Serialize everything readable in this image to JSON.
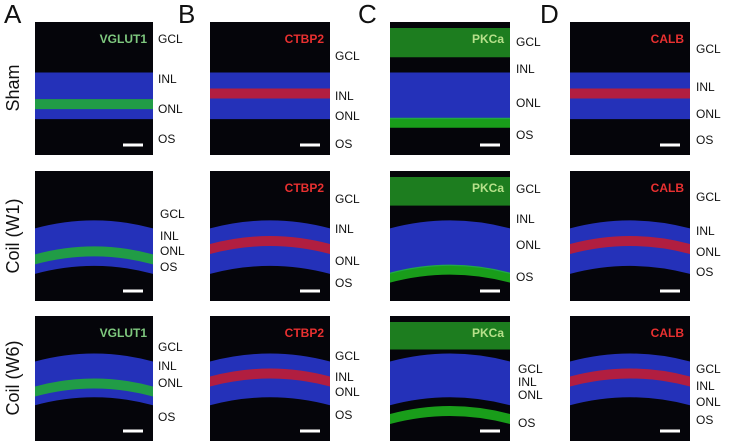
{
  "row_labels": [
    "Sham",
    "Coil (W1)",
    "Coil (W6)"
  ],
  "panels": [
    {
      "letter": "A",
      "stains": [
        "VGLUT1",
        null,
        "VGLUT1"
      ],
      "rows": [
        [
          "GCL",
          "INL",
          "ONL",
          "OS"
        ],
        [
          "GCL",
          "INL",
          "ONL",
          "OS"
        ],
        [
          "GCL",
          "INL",
          "ONL",
          "OS"
        ]
      ]
    },
    {
      "letter": "B",
      "stains": [
        "CTBP2",
        "CTBP2",
        "CTBP2"
      ],
      "rows": [
        [
          "GCL",
          "INL",
          "ONL",
          "OS"
        ],
        [
          "GCL",
          "INL",
          "ONL",
          "OS"
        ],
        [
          "GCL",
          "INL",
          "ONL",
          "OS"
        ]
      ]
    },
    {
      "letter": "C",
      "stains": [
        "PKCa",
        "PKCa",
        "PKCa"
      ],
      "rows": [
        [
          "GCL",
          "INL",
          "ONL",
          "OS"
        ],
        [
          "GCL",
          "INL",
          "ONL",
          "OS"
        ],
        [
          "GCL",
          "INL",
          "ONL",
          "OS"
        ]
      ]
    },
    {
      "letter": "D",
      "stains": [
        "CALB",
        "CALB",
        "CALB"
      ],
      "rows": [
        [
          "GCL",
          "INL",
          "ONL",
          "OS"
        ],
        [
          "GCL",
          "INL",
          "ONL",
          "OS"
        ],
        [
          "GCL",
          "INL",
          "ONL",
          "OS"
        ]
      ]
    }
  ]
}
